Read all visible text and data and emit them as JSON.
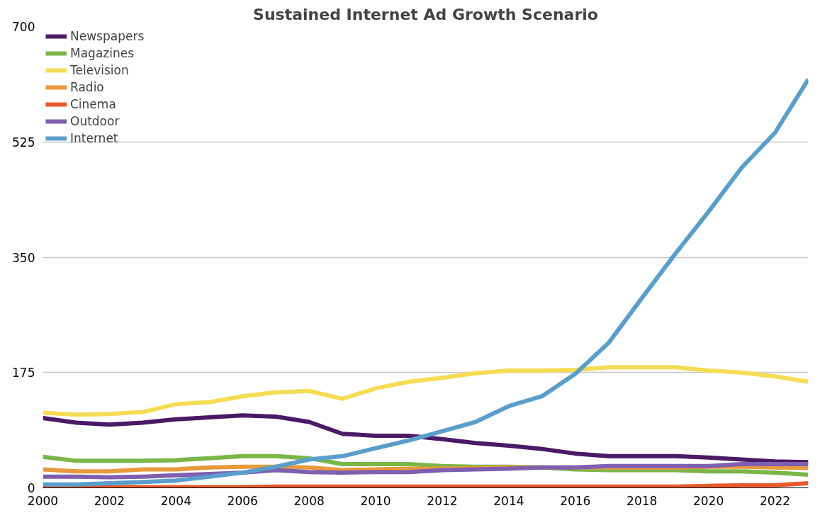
{
  "chart_data": {
    "type": "line",
    "title": "Sustained Internet Ad Growth Scenario",
    "x": [
      2000,
      2001,
      2002,
      2003,
      2004,
      2005,
      2006,
      2007,
      2008,
      2009,
      2010,
      2011,
      2012,
      2013,
      2014,
      2015,
      2016,
      2017,
      2018,
      2019,
      2020,
      2021,
      2022,
      2023
    ],
    "series": [
      {
        "name": "Newspapers",
        "color": "#4b1a66",
        "values": [
          106,
          99,
          96,
          99,
          104,
          107,
          110,
          108,
          100,
          82,
          79,
          79,
          74,
          68,
          64,
          59,
          52,
          48,
          48,
          48,
          46,
          43,
          40,
          39
        ]
      },
      {
        "name": "Magazines",
        "color": "#7ab648",
        "values": [
          47,
          41,
          41,
          41,
          42,
          45,
          48,
          48,
          45,
          36,
          36,
          36,
          33,
          32,
          32,
          31,
          28,
          27,
          27,
          27,
          25,
          25,
          23,
          20
        ]
      },
      {
        "name": "Television",
        "color": "#f5dc55",
        "values": [
          114,
          111,
          112,
          115,
          127,
          130,
          139,
          145,
          147,
          135,
          151,
          161,
          167,
          174,
          178,
          178,
          179,
          183,
          183,
          183,
          178,
          175,
          169,
          161
        ]
      },
      {
        "name": "Radio",
        "color": "#e89a3c",
        "values": [
          28,
          25,
          25,
          28,
          28,
          31,
          32,
          32,
          31,
          27,
          28,
          29,
          29,
          30,
          31,
          31,
          31,
          31,
          31,
          31,
          32,
          32,
          31,
          30
        ]
      },
      {
        "name": "Cinema",
        "color": "#e85a2c",
        "values": [
          1,
          1,
          1,
          1,
          1,
          1,
          1,
          2,
          2,
          2,
          2,
          2,
          2,
          2,
          2,
          2,
          2,
          2,
          2,
          2,
          3,
          4,
          4,
          7
        ]
      },
      {
        "name": "Outdoor",
        "color": "#7f5fb0",
        "values": [
          17,
          17,
          16,
          17,
          19,
          21,
          23,
          27,
          24,
          23,
          24,
          24,
          27,
          28,
          29,
          31,
          31,
          33,
          33,
          33,
          33,
          36,
          36,
          36
        ]
      },
      {
        "name": "Internet",
        "color": "#5a9fcc",
        "values": [
          5,
          5,
          7,
          9,
          11,
          17,
          23,
          32,
          43,
          48,
          60,
          72,
          86,
          100,
          124,
          139,
          173,
          220,
          288,
          355,
          419,
          486,
          539,
          620
        ]
      }
    ],
    "xlim": [
      2000,
      2023
    ],
    "xticks": [
      2000,
      2002,
      2004,
      2006,
      2008,
      2010,
      2012,
      2014,
      2016,
      2018,
      2020,
      2022
    ],
    "ylim": [
      0,
      700
    ],
    "yticks": [
      0,
      175,
      350,
      525,
      700
    ],
    "grid": "y",
    "legend": "top left",
    "line_style": "solid",
    "marker": "none"
  }
}
